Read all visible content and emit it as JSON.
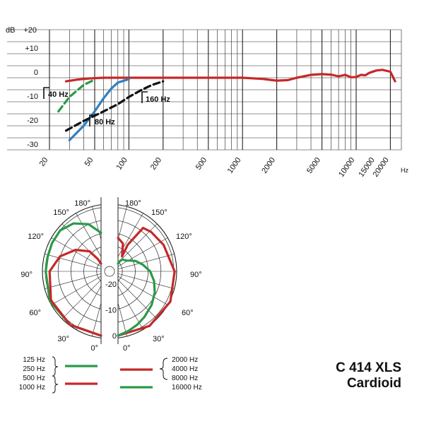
{
  "chart_data": [
    {
      "type": "line",
      "xscale": "log",
      "xlim": [
        20,
        25000
      ],
      "ylim": [
        -30,
        20
      ],
      "grid": true,
      "ylabel": "dB",
      "yticks": [
        {
          "v": 20,
          "label": "+20"
        },
        {
          "v": 10,
          "label": "+10"
        },
        {
          "v": 0,
          "label": "0"
        },
        {
          "v": -10,
          "label": "-10"
        },
        {
          "v": -20,
          "label": "-20"
        },
        {
          "v": -30,
          "label": "-30"
        }
      ],
      "xticks": [
        20,
        50,
        100,
        200,
        500,
        1000,
        2000,
        5000,
        10000,
        15000,
        20000
      ],
      "xtick_labels": [
        "20",
        "50",
        "100",
        "200",
        "500",
        "1000",
        "2000",
        "5000",
        "10000",
        "15000",
        "20000"
      ],
      "xunit": "Hz",
      "series": [
        {
          "name": "",
          "color": "#c62828",
          "style": "solid",
          "x": [
            28,
            35,
            45,
            60,
            100,
            200,
            500,
            1000,
            1500,
            2000,
            2500,
            3000,
            4000,
            5000,
            6000,
            7000,
            8000,
            9000,
            10000,
            11000,
            12000,
            13000,
            15000,
            17000,
            20000,
            22000
          ],
          "y": [
            -1.5,
            -0.8,
            -0.3,
            0,
            0,
            0,
            0,
            0,
            -0.5,
            -1.2,
            -1,
            0,
            1.2,
            1.5,
            1.3,
            0.6,
            1.2,
            0.2,
            0.3,
            1.2,
            1.0,
            2.0,
            3.0,
            3.3,
            2.5,
            -1.5
          ]
        },
        {
          "name": "40Hz",
          "color": "#2a9a48",
          "style": "dashed",
          "x": [
            24,
            30,
            40,
            50
          ],
          "y": [
            -14,
            -8,
            -3,
            -0.8
          ]
        },
        {
          "name": "80Hz",
          "color": "#2f7fc0",
          "style": "solid",
          "x": [
            30,
            40,
            50,
            60,
            70,
            80,
            100
          ],
          "y": [
            -26,
            -20,
            -14,
            -8.5,
            -4.5,
            -2,
            -0.6
          ]
        },
        {
          "name": "160Hz",
          "color": "#111111",
          "style": "dashed",
          "x": [
            28,
            40,
            60,
            80,
            100,
            130,
            160,
            200
          ],
          "y": [
            -22,
            -18,
            -14,
            -11,
            -8,
            -5,
            -3,
            -1.5
          ]
        }
      ]
    },
    {
      "type": "polar",
      "rticks": [
        -20,
        -10,
        0
      ],
      "angle_labels": [
        "180°",
        "150°",
        "120°",
        "90°",
        "60°",
        "30°",
        "0°",
        "180°",
        "150°",
        "120°",
        "90°",
        "60°",
        "30°",
        "0°"
      ],
      "rlim": [
        -25,
        0
      ],
      "series": [
        {
          "name": "125 Hz / 250 Hz",
          "color": "#2a9a48",
          "side": "left",
          "angles": [
            0,
            30,
            60,
            90,
            105,
            120,
            135,
            150,
            165,
            180
          ],
          "values": [
            0,
            -1,
            -2,
            -3.5,
            -3.5,
            -3,
            -2.5,
            -3.5,
            -6,
            -10
          ]
        },
        {
          "name": "500 Hz / 1000 Hz",
          "color": "#c62828",
          "side": "left",
          "angles": [
            0,
            30,
            60,
            90,
            110,
            130,
            150,
            165,
            180
          ],
          "values": [
            0,
            -1,
            -2.5,
            -5,
            -8,
            -12,
            -16,
            -20,
            -22
          ]
        },
        {
          "name": "2000 Hz / 4000 Hz / 8000 Hz",
          "color": "#c62828",
          "side": "right",
          "angles": [
            0,
            30,
            60,
            90,
            120,
            140,
            150,
            160,
            165,
            170,
            180
          ],
          "values": [
            0,
            -0.5,
            -1.5,
            -3,
            -4.5,
            -5,
            -5.5,
            -14,
            -19,
            -14,
            -12
          ]
        },
        {
          "name": "16000 Hz",
          "color": "#2a9a48",
          "side": "right",
          "angles": [
            0,
            10,
            20,
            30,
            45,
            60,
            75,
            90,
            105,
            120,
            130,
            140,
            150,
            160,
            170,
            180
          ],
          "values": [
            0,
            -1.5,
            -3,
            -4.5,
            -6.5,
            -8.5,
            -10.5,
            -12.5,
            -15,
            -17,
            -18.5,
            -19.5,
            -20,
            -20,
            -21,
            -22
          ]
        }
      ]
    }
  ],
  "legend": {
    "left_1a": "125 Hz",
    "left_1b": "250 Hz",
    "left_2a": "500 Hz",
    "left_2b": "1000 Hz",
    "right_1a": "2000 Hz",
    "right_1b": "4000 Hz",
    "right_1c": "8000 Hz",
    "right_2": "16000 Hz",
    "colors": {
      "green": "#2a9a48",
      "red": "#c62828"
    }
  },
  "product": {
    "model": "C 414 XLS",
    "pattern": "Cardioid"
  }
}
